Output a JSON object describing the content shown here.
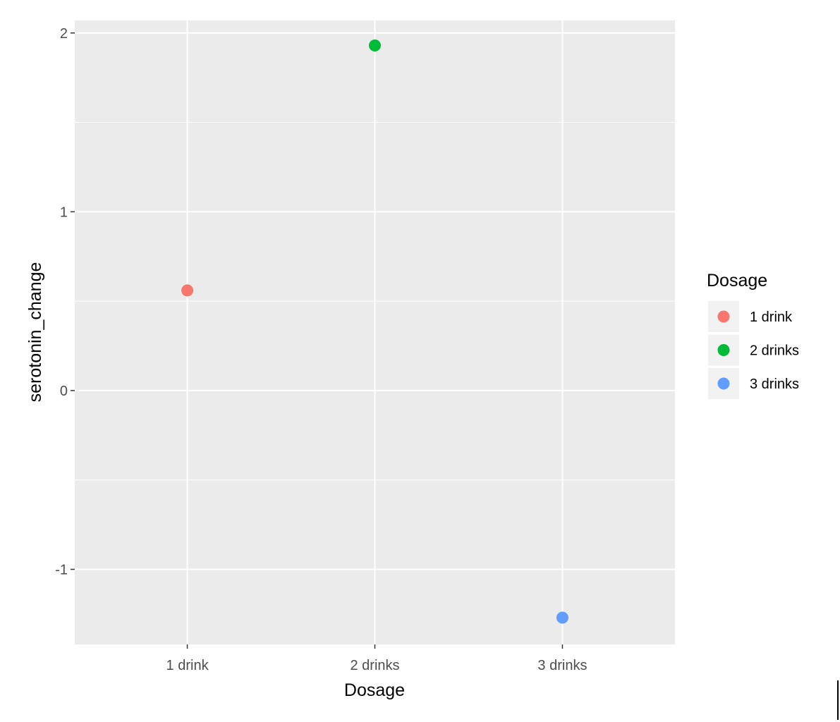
{
  "chart_data": {
    "type": "scatter",
    "title": "",
    "xlabel": "Dosage",
    "ylabel": "serotonin_change",
    "categories": [
      "1 drink",
      "2 drinks",
      "3 drinks"
    ],
    "values": [
      0.56,
      1.93,
      -1.27
    ],
    "y_ticks": [
      -1,
      0,
      1,
      2
    ],
    "y_tick_labels": [
      "-1",
      "0",
      "1",
      "2"
    ],
    "ylim": [
      -1.42,
      2.07
    ],
    "grid": true,
    "legend": {
      "title": "Dosage",
      "placement": "right",
      "entries": [
        "1 drink",
        "2 drinks",
        "3 drinks"
      ]
    },
    "colors": [
      "#F8766D",
      "#00BA38",
      "#619CFF"
    ],
    "panel_background": "#EBEBEB"
  }
}
